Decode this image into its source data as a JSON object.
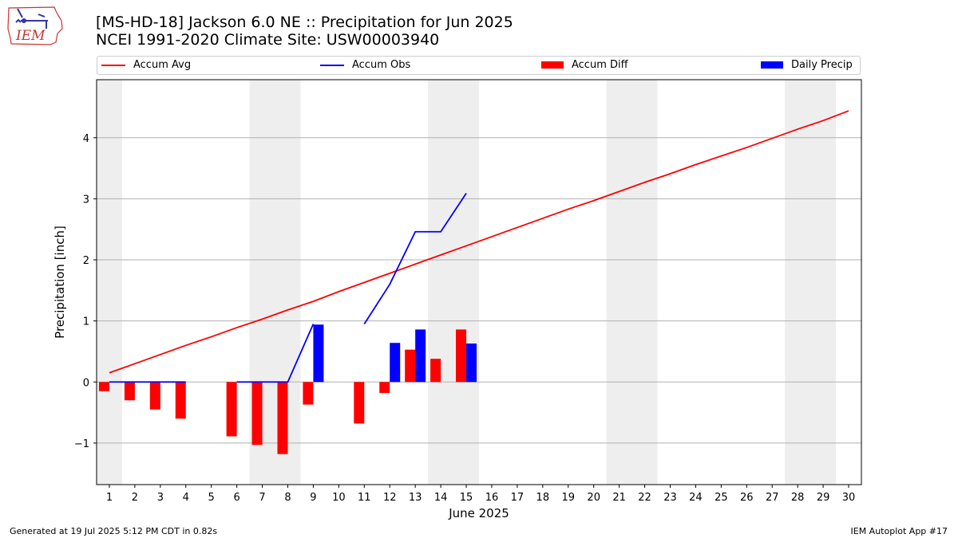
{
  "header": {
    "title_line1": "[MS-HD-18] Jackson 6.0 NE :: Precipitation for Jun 2025",
    "title_line2": "NCEI 1991-2020 Climate Site: USW00003940"
  },
  "logo": {
    "text": "IEM",
    "icon": "iowa-state-outline-logo"
  },
  "legend": {
    "items": [
      {
        "label": "Accum Avg",
        "kind": "line",
        "color": "#ff0000"
      },
      {
        "label": "Accum Obs",
        "kind": "line",
        "color": "#0000ff"
      },
      {
        "label": "Accum Diff",
        "kind": "bar",
        "color": "#ff0000"
      },
      {
        "label": "Daily Precip",
        "kind": "bar",
        "color": "#0000ff"
      }
    ]
  },
  "footer": {
    "left": "Generated at 19 Jul 2025 5:12 PM CDT in 0.82s",
    "right": "IEM Autoplot App #17"
  },
  "chart_data": {
    "type": "bar",
    "xlabel": "June 2025",
    "ylabel": "Precipitation [inch]",
    "xlim": [
      0.5,
      30.5
    ],
    "ylim": [
      -1.68,
      4.95
    ],
    "x_ticks": [
      1,
      2,
      3,
      4,
      5,
      6,
      7,
      8,
      9,
      10,
      11,
      12,
      13,
      14,
      15,
      16,
      17,
      18,
      19,
      20,
      21,
      22,
      23,
      24,
      25,
      26,
      27,
      28,
      29,
      30
    ],
    "y_ticks": [
      -1,
      0,
      1,
      2,
      3,
      4
    ],
    "y_tick_labels": [
      "−1",
      "0",
      "1",
      "2",
      "3",
      "4"
    ],
    "grid": "horizontal",
    "weekend_shading": [
      [
        0.5,
        1.5
      ],
      [
        6.5,
        8.5
      ],
      [
        13.5,
        15.5
      ],
      [
        20.5,
        22.5
      ],
      [
        27.5,
        29.5
      ]
    ],
    "colors": {
      "avg": "#ff0000",
      "obs": "#0000ff",
      "diff": "#ff0000",
      "daily": "#0000ff",
      "shade": "#eeeeee",
      "grid": "#b0b0b0"
    },
    "accum_avg": {
      "x": [
        1,
        2,
        3,
        4,
        5,
        6,
        7,
        8,
        9,
        10,
        11,
        12,
        13,
        14,
        15,
        16,
        17,
        18,
        19,
        20,
        21,
        22,
        23,
        24,
        25,
        26,
        27,
        28,
        29,
        30
      ],
      "values": [
        0.15,
        0.3,
        0.45,
        0.6,
        0.74,
        0.89,
        1.03,
        1.18,
        1.32,
        1.48,
        1.63,
        1.78,
        1.93,
        2.08,
        2.23,
        2.38,
        2.53,
        2.68,
        2.83,
        2.97,
        3.12,
        3.27,
        3.41,
        3.56,
        3.7,
        3.84,
        3.99,
        4.14,
        4.28,
        4.44
      ]
    },
    "accum_obs": {
      "segments": [
        {
          "x": [
            1,
            2,
            3,
            4
          ],
          "values": [
            0,
            0,
            0,
            0
          ]
        },
        {
          "x": [
            6,
            7,
            8,
            9
          ],
          "values": [
            0,
            0,
            0,
            0.95
          ]
        },
        {
          "x": [
            11,
            12,
            13,
            14,
            15
          ],
          "values": [
            0.95,
            1.6,
            2.46,
            2.46,
            3.09
          ]
        }
      ]
    },
    "accum_diff": {
      "x": [
        1,
        2,
        3,
        4,
        6,
        7,
        8,
        9,
        11,
        12,
        13,
        14,
        15
      ],
      "values": [
        -0.15,
        -0.3,
        -0.45,
        -0.6,
        -0.89,
        -1.03,
        -1.18,
        -0.37,
        -0.68,
        -0.18,
        0.53,
        0.38,
        0.86
      ]
    },
    "daily_precip": {
      "x": [
        9,
        12,
        13,
        15
      ],
      "values": [
        0.94,
        0.64,
        0.86,
        0.63
      ]
    }
  }
}
